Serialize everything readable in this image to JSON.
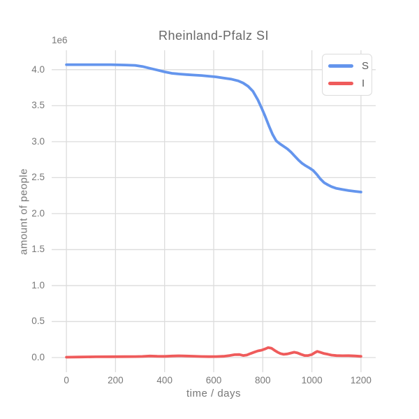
{
  "chart_data": {
    "type": "line",
    "title": "Rheinland-Pfalz SI",
    "xlabel": "time / days",
    "ylabel": "amount of people",
    "y_offset_label": "1e6",
    "y_unit": "1e6 people",
    "grid": true,
    "legend_position": "upper right",
    "xlim": [
      -60,
      1260
    ],
    "ylim": [
      -0.204,
      4.27
    ],
    "x_ticks": [
      0,
      200,
      400,
      600,
      800,
      1000,
      1200
    ],
    "y_ticks": [
      0.0,
      0.5,
      1.0,
      1.5,
      2.0,
      2.5,
      3.0,
      3.5,
      4.0
    ],
    "grid_color": "#dcdcdc",
    "series": [
      {
        "name": "S",
        "color": "#6495ED",
        "points": [
          [
            0,
            4.07
          ],
          [
            60,
            4.07
          ],
          [
            120,
            4.07
          ],
          [
            180,
            4.07
          ],
          [
            240,
            4.065
          ],
          [
            280,
            4.06
          ],
          [
            310,
            4.045
          ],
          [
            340,
            4.02
          ],
          [
            370,
            3.995
          ],
          [
            400,
            3.97
          ],
          [
            430,
            3.95
          ],
          [
            460,
            3.94
          ],
          [
            490,
            3.932
          ],
          [
            520,
            3.925
          ],
          [
            550,
            3.92
          ],
          [
            580,
            3.91
          ],
          [
            610,
            3.9
          ],
          [
            640,
            3.885
          ],
          [
            670,
            3.87
          ],
          [
            700,
            3.845
          ],
          [
            720,
            3.815
          ],
          [
            740,
            3.77
          ],
          [
            760,
            3.7
          ],
          [
            780,
            3.58
          ],
          [
            795,
            3.47
          ],
          [
            810,
            3.35
          ],
          [
            825,
            3.22
          ],
          [
            840,
            3.1
          ],
          [
            855,
            3.01
          ],
          [
            870,
            2.97
          ],
          [
            885,
            2.935
          ],
          [
            900,
            2.9
          ],
          [
            915,
            2.855
          ],
          [
            930,
            2.8
          ],
          [
            945,
            2.745
          ],
          [
            960,
            2.7
          ],
          [
            975,
            2.665
          ],
          [
            990,
            2.635
          ],
          [
            1005,
            2.6
          ],
          [
            1020,
            2.545
          ],
          [
            1035,
            2.48
          ],
          [
            1050,
            2.43
          ],
          [
            1065,
            2.4
          ],
          [
            1080,
            2.375
          ],
          [
            1100,
            2.35
          ],
          [
            1125,
            2.335
          ],
          [
            1150,
            2.32
          ],
          [
            1175,
            2.31
          ],
          [
            1200,
            2.3
          ]
        ]
      },
      {
        "name": "I",
        "color": "#EF5B5B",
        "points": [
          [
            0,
            0.005
          ],
          [
            60,
            0.008
          ],
          [
            120,
            0.01
          ],
          [
            180,
            0.011
          ],
          [
            240,
            0.012
          ],
          [
            280,
            0.013
          ],
          [
            310,
            0.015
          ],
          [
            340,
            0.021
          ],
          [
            370,
            0.017
          ],
          [
            400,
            0.016
          ],
          [
            430,
            0.021
          ],
          [
            460,
            0.024
          ],
          [
            490,
            0.021
          ],
          [
            520,
            0.018
          ],
          [
            550,
            0.014
          ],
          [
            580,
            0.012
          ],
          [
            610,
            0.013
          ],
          [
            640,
            0.017
          ],
          [
            665,
            0.028
          ],
          [
            685,
            0.04
          ],
          [
            705,
            0.042
          ],
          [
            720,
            0.028
          ],
          [
            735,
            0.035
          ],
          [
            750,
            0.055
          ],
          [
            765,
            0.075
          ],
          [
            780,
            0.092
          ],
          [
            795,
            0.102
          ],
          [
            810,
            0.12
          ],
          [
            822,
            0.138
          ],
          [
            835,
            0.13
          ],
          [
            848,
            0.1
          ],
          [
            860,
            0.075
          ],
          [
            872,
            0.055
          ],
          [
            885,
            0.044
          ],
          [
            900,
            0.05
          ],
          [
            915,
            0.063
          ],
          [
            928,
            0.074
          ],
          [
            940,
            0.066
          ],
          [
            955,
            0.045
          ],
          [
            970,
            0.028
          ],
          [
            985,
            0.028
          ],
          [
            1000,
            0.042
          ],
          [
            1012,
            0.068
          ],
          [
            1022,
            0.085
          ],
          [
            1035,
            0.072
          ],
          [
            1050,
            0.055
          ],
          [
            1065,
            0.045
          ],
          [
            1080,
            0.034
          ],
          [
            1100,
            0.027
          ],
          [
            1125,
            0.025
          ],
          [
            1150,
            0.026
          ],
          [
            1175,
            0.022
          ],
          [
            1200,
            0.016
          ]
        ]
      }
    ]
  }
}
